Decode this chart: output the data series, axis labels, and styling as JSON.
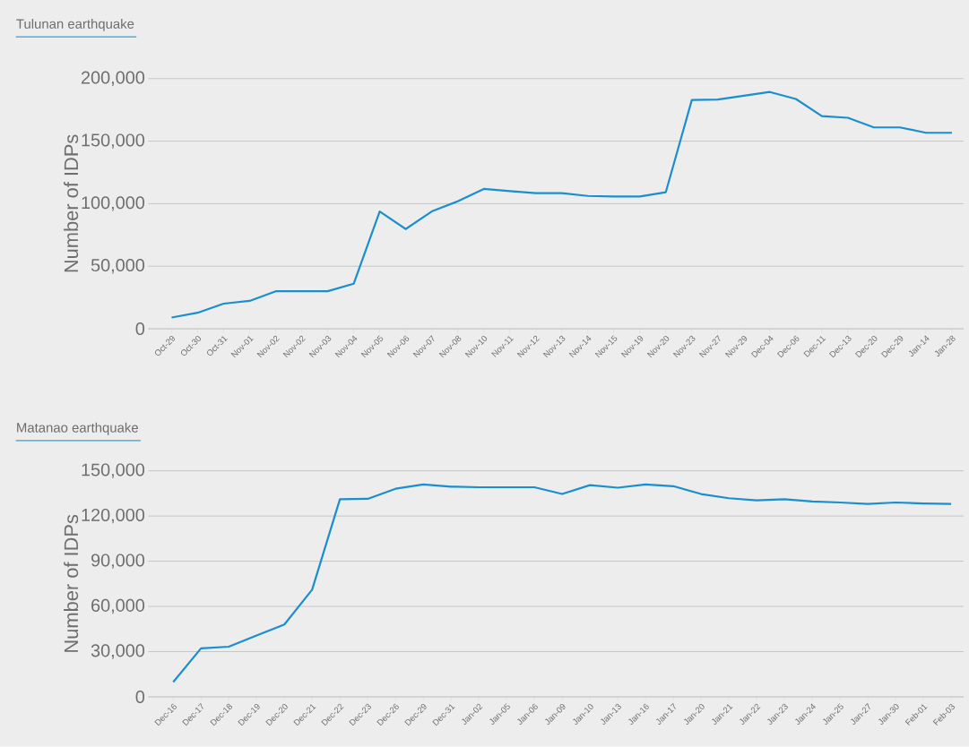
{
  "chart_data": [
    {
      "type": "line",
      "title": "Tulunan earthquake",
      "ylabel": "Number of IDPs",
      "color": "#1a8fce",
      "grid": "y",
      "categories": [
        "Oct-29",
        "Oct-30",
        "Oct-31",
        "Nov-01",
        "Nov-02",
        "Nov-02",
        "Nov-03",
        "Nov-04",
        "Nov-05",
        "Nov-06",
        "Nov-07",
        "Nov-08",
        "Nov-10",
        "Nov-11",
        "Nov-12",
        "Nov-13",
        "Nov-14",
        "Nov-15",
        "Nov-19",
        "Nov-20",
        "Nov-23",
        "Nov-27",
        "Nov-29",
        "Dec-04",
        "Dec-06",
        "Dec-11",
        "Dec-13",
        "Dec-20",
        "Dec-29",
        "Jan-14",
        "Jan-28"
      ],
      "values": [
        9000,
        12800,
        20100,
        22300,
        30000,
        30000,
        30000,
        36000,
        93800,
        79700,
        93800,
        101900,
        111800,
        110100,
        108400,
        108400,
        106200,
        105800,
        105800,
        109200,
        182900,
        183300,
        186300,
        189300,
        183700,
        170000,
        168700,
        161000,
        161000,
        156700,
        156700
      ],
      "ylim": [
        0,
        200000
      ],
      "yticks": [
        {
          "value": 0,
          "label": "0"
        },
        {
          "value": 50000,
          "label": "50,000"
        },
        {
          "value": 100000,
          "label": "100,000"
        },
        {
          "value": 150000,
          "label": "150,000"
        },
        {
          "value": 200000,
          "label": "200,000"
        }
      ]
    },
    {
      "type": "line",
      "title": "Matanao earthquake",
      "ylabel": "Number of IDPs",
      "color": "#1a8fce",
      "grid": "y",
      "categories": [
        "Dec-16",
        "Dec-17",
        "Dec-18",
        "Dec-19",
        "Dec-20",
        "Dec-21",
        "Dec-22",
        "Dec-23",
        "Dec-26",
        "Dec-29",
        "Dec-31",
        "Jan-02",
        "Jan-05",
        "Jan-06",
        "Jan-09",
        "Jan-10",
        "Jan-13",
        "Jan-16",
        "Jan-17",
        "Jan-20",
        "Jan-21",
        "Jan-22",
        "Jan-23",
        "Jan-24",
        "Jan-25",
        "Jan-27",
        "Jan-30",
        "Feb-01",
        "Feb-03"
      ],
      "values": [
        9800,
        32200,
        33300,
        40700,
        48000,
        71100,
        131100,
        131400,
        138100,
        140900,
        139500,
        139100,
        139100,
        139100,
        134600,
        140500,
        138800,
        140900,
        139800,
        134600,
        131800,
        130400,
        131100,
        129700,
        129000,
        128000,
        129000,
        128300,
        128000
      ],
      "ylim": [
        0,
        150000
      ],
      "yticks": [
        {
          "value": 0,
          "label": "0"
        },
        {
          "value": 30000,
          "label": "30,000"
        },
        {
          "value": 60000,
          "label": "60,000"
        },
        {
          "value": 90000,
          "label": "90,000"
        },
        {
          "value": 120000,
          "label": "120,000"
        },
        {
          "value": 150000,
          "label": "150,000"
        }
      ]
    }
  ]
}
